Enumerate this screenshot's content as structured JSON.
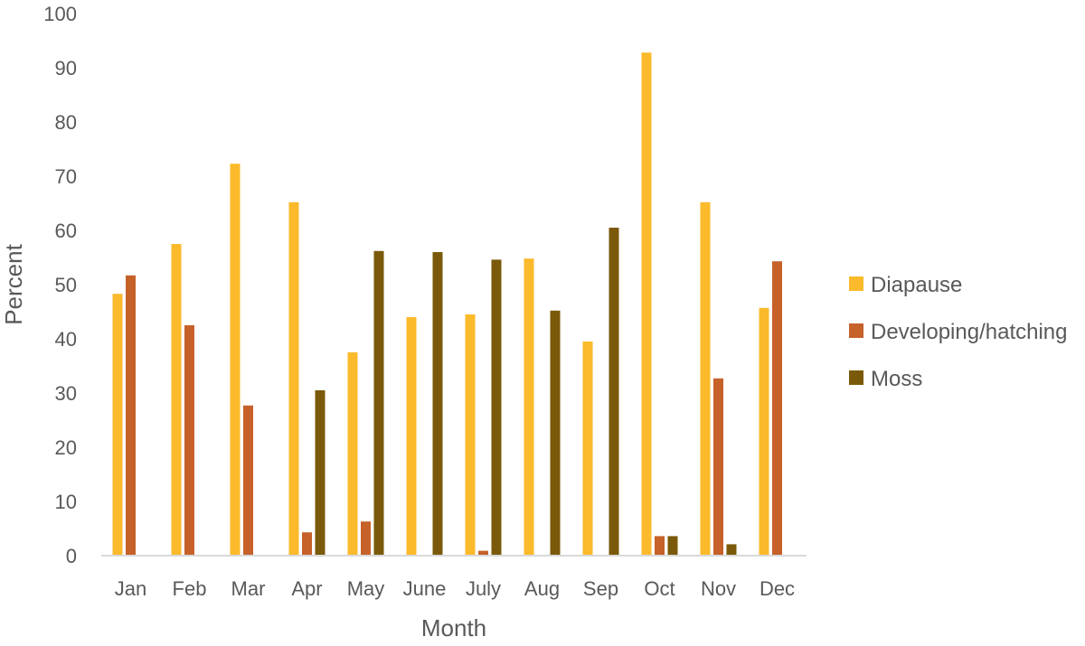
{
  "chart_data": {
    "type": "bar",
    "title": "",
    "xlabel": "Month",
    "ylabel": "Percent",
    "ylim": [
      0,
      100
    ],
    "yticks": [
      0,
      10,
      20,
      30,
      40,
      50,
      60,
      70,
      80,
      90,
      100
    ],
    "grid": false,
    "legend_position": "right",
    "categories": [
      "Jan",
      "Feb",
      "Mar",
      "Apr",
      "May",
      "June",
      "July",
      "Aug",
      "Sep",
      "Oct",
      "Nov",
      "Dec"
    ],
    "series": [
      {
        "name": "Diapause",
        "color": "#FBBA2B",
        "values": [
          48.3,
          57.5,
          72.3,
          65.2,
          37.5,
          44.0,
          44.5,
          54.8,
          39.5,
          92.8,
          65.2,
          45.7
        ]
      },
      {
        "name": "Developing/hatching",
        "color": "#C6612A",
        "values": [
          51.7,
          42.5,
          27.7,
          4.3,
          6.3,
          0,
          0.9,
          0,
          0,
          3.6,
          32.7,
          54.3
        ]
      },
      {
        "name": "Moss",
        "color": "#7A5A0A",
        "values": [
          0,
          0,
          0,
          30.5,
          56.2,
          56.0,
          54.6,
          45.2,
          60.5,
          3.6,
          2.1,
          0
        ]
      }
    ]
  }
}
